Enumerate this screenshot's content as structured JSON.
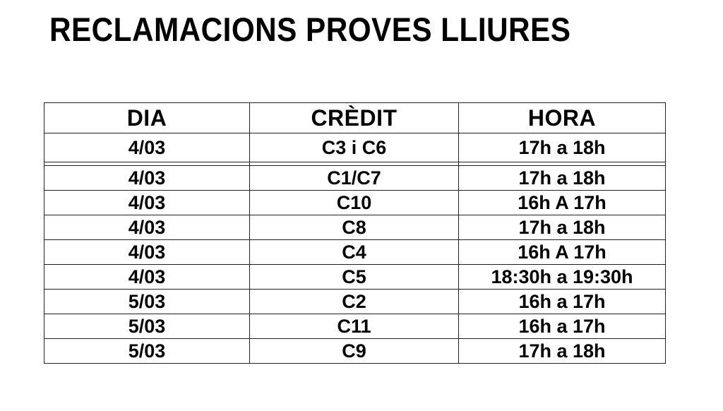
{
  "page": {
    "title": "RECLAMACIONS PROVES LLIURES"
  },
  "table": {
    "columns": [
      "DIA",
      "CRÈDIT",
      "HORA"
    ],
    "rows": [
      [
        "4/03",
        "C3 i C6",
        "17h a 18h"
      ],
      [
        "4/03",
        "C1/C7",
        "17h a 18h"
      ],
      [
        "4/03",
        "C10",
        "16h A 17h"
      ],
      [
        "4/03",
        "C8",
        "17h a 18h"
      ],
      [
        "4/03",
        "C4",
        "16h A 17h"
      ],
      [
        "4/03",
        "C5",
        "18:30h a 19:30h"
      ],
      [
        "5/03",
        "C2",
        "16h a 17h"
      ],
      [
        "5/03",
        "C11",
        "16h a 17h"
      ],
      [
        "5/03",
        "C9",
        "17h a 18h"
      ]
    ]
  },
  "colors": {
    "background": "#ffffff",
    "text": "#000000",
    "border": "#222222"
  }
}
